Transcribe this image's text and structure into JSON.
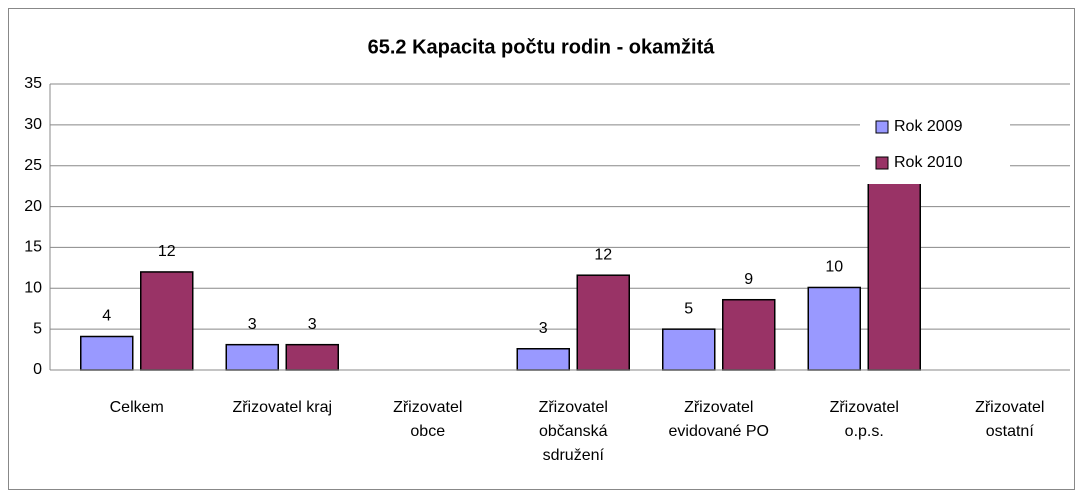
{
  "chart_data": {
    "type": "bar",
    "title": "65.2 Kapacita počtu rodin - okamžitá",
    "categories": [
      "Celkem",
      "Zřizovatel kraj",
      "Zřizovatel\nobce",
      "Zřizovatel\nobčanská\nsdružení",
      "Zřizovatel\nevidované PO",
      "Zřizovatel\no.p.s.",
      "Zřizovatel\nostatní"
    ],
    "series": [
      {
        "name": "Rok 2009",
        "color": "#9999ff",
        "values": [
          4.1,
          3.1,
          null,
          2.6,
          5,
          10.1,
          null
        ],
        "value_labels": [
          "4",
          "3",
          null,
          "3",
          "5",
          "10",
          null
        ]
      },
      {
        "name": "Rok 2010",
        "color": "#993366",
        "values": [
          12,
          3.1,
          null,
          11.6,
          8.6,
          26.2,
          null
        ],
        "value_labels": [
          "12",
          "3",
          null,
          "12",
          "9",
          null,
          null
        ]
      }
    ],
    "ylim": [
      0,
      35
    ],
    "yticks": [
      0,
      5,
      10,
      15,
      20,
      25,
      30,
      35
    ],
    "grid": true,
    "legend": "top-right"
  }
}
